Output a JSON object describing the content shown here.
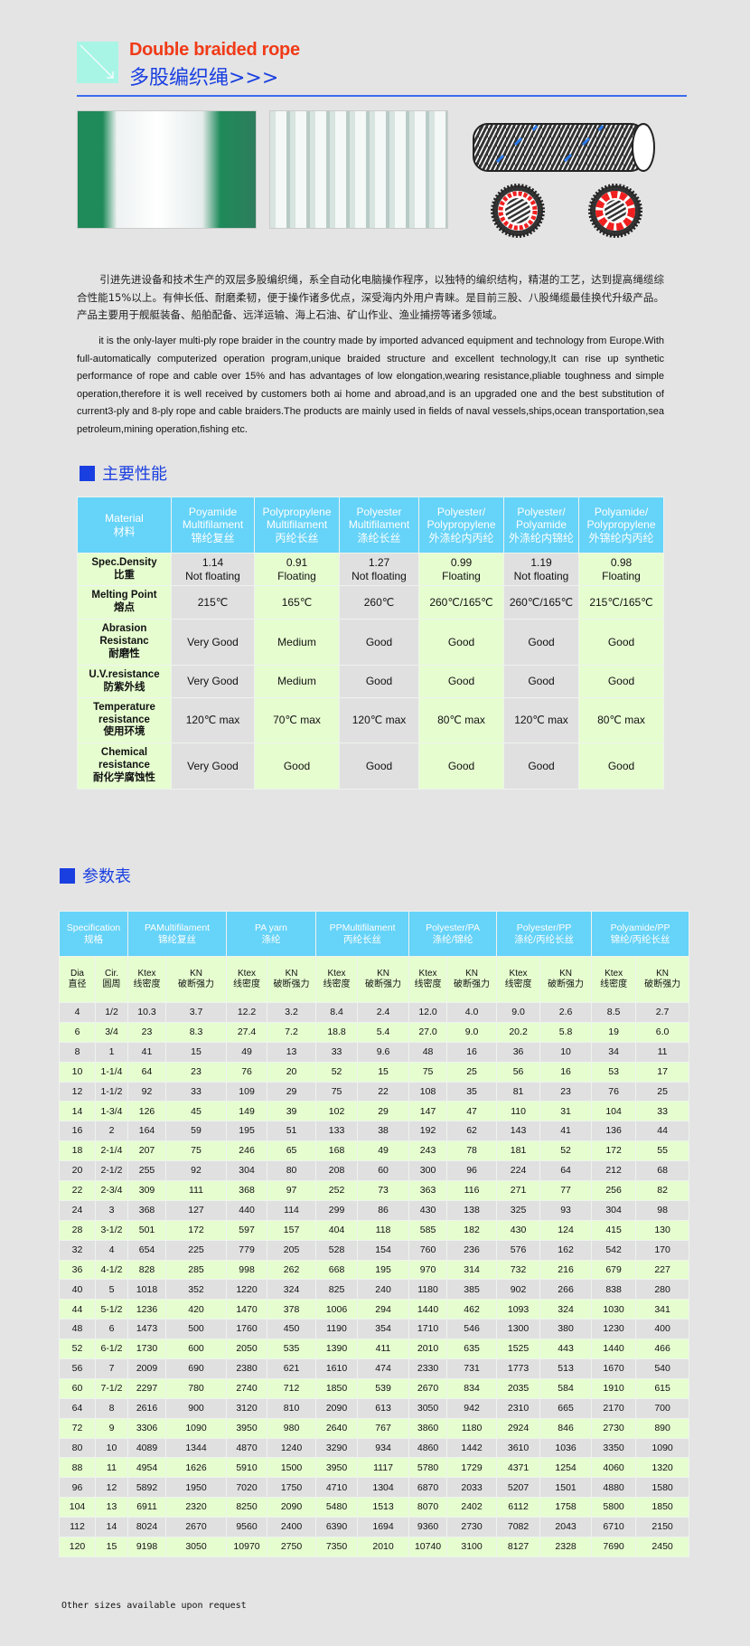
{
  "header": {
    "title_en": "Double braided rope",
    "title_cn": "多股编织绳>>>"
  },
  "intro": {
    "cn": "引进先进设备和技术生产的双层多股编织绳，系全自动化电脑操作程序，以独特的编织结构，精湛的工艺，达到提高绳缆综合性能15%以上。有伸长低、耐磨柔韧，便于操作诸多优点，深受海内外用户青睐。是目前三股、八股绳缆最佳换代升级产品。产品主要用于舰艇装备、船舶配备、远洋运输、海上石油、矿山作业、渔业捕捞等诸多领域。",
    "en": "it is the only-layer multi-ply rope braider in the country made by imported advanced equipment  and technology from Europe.With full-automatically computerized operation program,unique braided structure and excellent technology,It can rise up synthetic performance of rope and cable over 15% and has advantages of low elongation,wearing resistance,pliable toughness and simple operation,therefore it is well received by customers both ai home and abroad,and is an upgraded one and the best substitution of current3-ply and 8-ply rope and cable braiders.The products are mainly used in fields of naval vessels,ships,ocean transportation,sea petroleum,mining operation,fishing etc."
  },
  "colors": {
    "header_cell": "#66d3f8",
    "green_row": "#e6fdd0",
    "gray_row": "#e0e0e0",
    "heading_blue": "#1a3fe0",
    "title_red": "#f03a17"
  },
  "properties": {
    "heading": "主要性能",
    "columns": [
      [
        "Material",
        "材料"
      ],
      [
        "Poyamide",
        "Multifilament",
        "锦纶复丝"
      ],
      [
        "Polypropylene",
        "Multifilament",
        "丙纶长丝"
      ],
      [
        "Polyester",
        "Multifilament",
        "涤纶长丝"
      ],
      [
        "Polyester/",
        "Polypropylene",
        "外涤纶内丙纶"
      ],
      [
        "Polyester/",
        "Polyamide",
        "外涤纶内锦纶"
      ],
      [
        "Polyamide/",
        "Polypropylene",
        "外锦纶内丙纶"
      ]
    ],
    "rows": [
      {
        "label": [
          "Spec.Density",
          "比重"
        ],
        "values": [
          [
            "1.14",
            "Not floating"
          ],
          [
            "0.91",
            "Floating"
          ],
          [
            "1.27",
            "Not floating"
          ],
          [
            "0.99",
            "Floating"
          ],
          [
            "1.19",
            "Not floating"
          ],
          [
            "0.98",
            "Floating"
          ]
        ]
      },
      {
        "label": [
          "Melting Point",
          "熔点"
        ],
        "values": [
          [
            "215℃"
          ],
          [
            "165℃"
          ],
          [
            "260℃"
          ],
          [
            "260℃/165℃"
          ],
          [
            "260℃/165℃"
          ],
          [
            "215℃/165℃"
          ]
        ]
      },
      {
        "label": [
          "Abrasion",
          "Resistanc",
          "耐磨性"
        ],
        "values": [
          [
            "Very Good"
          ],
          [
            "Medium"
          ],
          [
            "Good"
          ],
          [
            "Good"
          ],
          [
            "Good"
          ],
          [
            "Good"
          ]
        ]
      },
      {
        "label": [
          "U.V.resistance",
          "防紫外线"
        ],
        "values": [
          [
            "Very Good"
          ],
          [
            "Medium"
          ],
          [
            "Good"
          ],
          [
            "Good"
          ],
          [
            "Good"
          ],
          [
            "Good"
          ]
        ]
      },
      {
        "label": [
          "Temperature",
          "resistance",
          "使用环境"
        ],
        "values": [
          [
            "120℃  max"
          ],
          [
            "70℃  max"
          ],
          [
            "120℃  max"
          ],
          [
            "80℃  max"
          ],
          [
            "120℃  max"
          ],
          [
            "80℃  max"
          ]
        ]
      },
      {
        "label": [
          "Chemical",
          "resistance",
          "耐化学腐蚀性"
        ],
        "values": [
          [
            "Very Good"
          ],
          [
            "Good"
          ],
          [
            "Good"
          ],
          [
            "Good"
          ],
          [
            "Good"
          ],
          [
            "Good"
          ]
        ]
      }
    ]
  },
  "specs": {
    "heading": "参数表",
    "groups": [
      [
        "Specification",
        "规格"
      ],
      [
        "PAMultifilament",
        "锦纶复丝"
      ],
      [
        "PA yarn",
        "涤纶"
      ],
      [
        "PPMultifilament",
        "丙纶长丝"
      ],
      [
        "Polyester/PA",
        "涤纶/锦纶"
      ],
      [
        "Polyester/PP",
        "涤纶/丙纶长丝"
      ],
      [
        "Polyamide/PP",
        "锦纶/丙纶长丝"
      ]
    ],
    "subheaders": [
      [
        "Dia",
        "直径"
      ],
      [
        "Cir.",
        "圆周"
      ],
      [
        "Ktex",
        "线密度"
      ],
      [
        "KN",
        "破断强力"
      ],
      [
        "Ktex",
        "线密度"
      ],
      [
        "KN",
        "破断强力"
      ],
      [
        "Ktex",
        "线密度"
      ],
      [
        "KN",
        "破断强力"
      ],
      [
        "Ktex",
        "线密度"
      ],
      [
        "KN",
        "破断强力"
      ],
      [
        "Ktex",
        "线密度"
      ],
      [
        "KN",
        "破断强力"
      ],
      [
        "Ktex",
        "线密度"
      ],
      [
        "KN",
        "破断强力"
      ]
    ],
    "rows": [
      [
        "4",
        "1/2",
        "10.3",
        "3.7",
        "12.2",
        "3.2",
        "8.4",
        "2.4",
        "12.0",
        "4.0",
        "9.0",
        "2.6",
        "8.5",
        "2.7"
      ],
      [
        "6",
        "3/4",
        "23",
        "8.3",
        "27.4",
        "7.2",
        "18.8",
        "5.4",
        "27.0",
        "9.0",
        "20.2",
        "5.8",
        "19",
        "6.0"
      ],
      [
        "8",
        "1",
        "41",
        "15",
        "49",
        "13",
        "33",
        "9.6",
        "48",
        "16",
        "36",
        "10",
        "34",
        "11"
      ],
      [
        "10",
        "1-1/4",
        "64",
        "23",
        "76",
        "20",
        "52",
        "15",
        "75",
        "25",
        "56",
        "16",
        "53",
        "17"
      ],
      [
        "12",
        "1-1/2",
        "92",
        "33",
        "109",
        "29",
        "75",
        "22",
        "108",
        "35",
        "81",
        "23",
        "76",
        "25"
      ],
      [
        "14",
        "1-3/4",
        "126",
        "45",
        "149",
        "39",
        "102",
        "29",
        "147",
        "47",
        "110",
        "31",
        "104",
        "33"
      ],
      [
        "16",
        "2",
        "164",
        "59",
        "195",
        "51",
        "133",
        "38",
        "192",
        "62",
        "143",
        "41",
        "136",
        "44"
      ],
      [
        "18",
        "2-1/4",
        "207",
        "75",
        "246",
        "65",
        "168",
        "49",
        "243",
        "78",
        "181",
        "52",
        "172",
        "55"
      ],
      [
        "20",
        "2-1/2",
        "255",
        "92",
        "304",
        "80",
        "208",
        "60",
        "300",
        "96",
        "224",
        "64",
        "212",
        "68"
      ],
      [
        "22",
        "2-3/4",
        "309",
        "111",
        "368",
        "97",
        "252",
        "73",
        "363",
        "116",
        "271",
        "77",
        "256",
        "82"
      ],
      [
        "24",
        "3",
        "368",
        "127",
        "440",
        "114",
        "299",
        "86",
        "430",
        "138",
        "325",
        "93",
        "304",
        "98"
      ],
      [
        "28",
        "3-1/2",
        "501",
        "172",
        "597",
        "157",
        "404",
        "118",
        "585",
        "182",
        "430",
        "124",
        "415",
        "130"
      ],
      [
        "32",
        "4",
        "654",
        "225",
        "779",
        "205",
        "528",
        "154",
        "760",
        "236",
        "576",
        "162",
        "542",
        "170"
      ],
      [
        "36",
        "4-1/2",
        "828",
        "285",
        "998",
        "262",
        "668",
        "195",
        "970",
        "314",
        "732",
        "216",
        "679",
        "227"
      ],
      [
        "40",
        "5",
        "1018",
        "352",
        "1220",
        "324",
        "825",
        "240",
        "1180",
        "385",
        "902",
        "266",
        "838",
        "280"
      ],
      [
        "44",
        "5-1/2",
        "1236",
        "420",
        "1470",
        "378",
        "1006",
        "294",
        "1440",
        "462",
        "1093",
        "324",
        "1030",
        "341"
      ],
      [
        "48",
        "6",
        "1473",
        "500",
        "1760",
        "450",
        "1190",
        "354",
        "1710",
        "546",
        "1300",
        "380",
        "1230",
        "400"
      ],
      [
        "52",
        "6-1/2",
        "1730",
        "600",
        "2050",
        "535",
        "1390",
        "411",
        "2010",
        "635",
        "1525",
        "443",
        "1440",
        "466"
      ],
      [
        "56",
        "7",
        "2009",
        "690",
        "2380",
        "621",
        "1610",
        "474",
        "2330",
        "731",
        "1773",
        "513",
        "1670",
        "540"
      ],
      [
        "60",
        "7-1/2",
        "2297",
        "780",
        "2740",
        "712",
        "1850",
        "539",
        "2670",
        "834",
        "2035",
        "584",
        "1910",
        "615"
      ],
      [
        "64",
        "8",
        "2616",
        "900",
        "3120",
        "810",
        "2090",
        "613",
        "3050",
        "942",
        "2310",
        "665",
        "2170",
        "700"
      ],
      [
        "72",
        "9",
        "3306",
        "1090",
        "3950",
        "980",
        "2640",
        "767",
        "3860",
        "1180",
        "2924",
        "846",
        "2730",
        "890"
      ],
      [
        "80",
        "10",
        "4089",
        "1344",
        "4870",
        "1240",
        "3290",
        "934",
        "4860",
        "1442",
        "3610",
        "1036",
        "3350",
        "1090"
      ],
      [
        "88",
        "11",
        "4954",
        "1626",
        "5910",
        "1500",
        "3950",
        "1117",
        "5780",
        "1729",
        "4371",
        "1254",
        "4060",
        "1320"
      ],
      [
        "96",
        "12",
        "5892",
        "1950",
        "7020",
        "1750",
        "4710",
        "1304",
        "6870",
        "2033",
        "5207",
        "1501",
        "4880",
        "1580"
      ],
      [
        "104",
        "13",
        "6911",
        "2320",
        "8250",
        "2090",
        "5480",
        "1513",
        "8070",
        "2402",
        "6112",
        "1758",
        "5800",
        "1850"
      ],
      [
        "112",
        "14",
        "8024",
        "2670",
        "9560",
        "2400",
        "6390",
        "1694",
        "9360",
        "2730",
        "7082",
        "2043",
        "6710",
        "2150"
      ],
      [
        "120",
        "15",
        "9198",
        "3050",
        "10970",
        "2750",
        "7350",
        "2010",
        "10740",
        "3100",
        "8127",
        "2328",
        "7690",
        "2450"
      ]
    ]
  },
  "footer": "Other sizes available upon request"
}
